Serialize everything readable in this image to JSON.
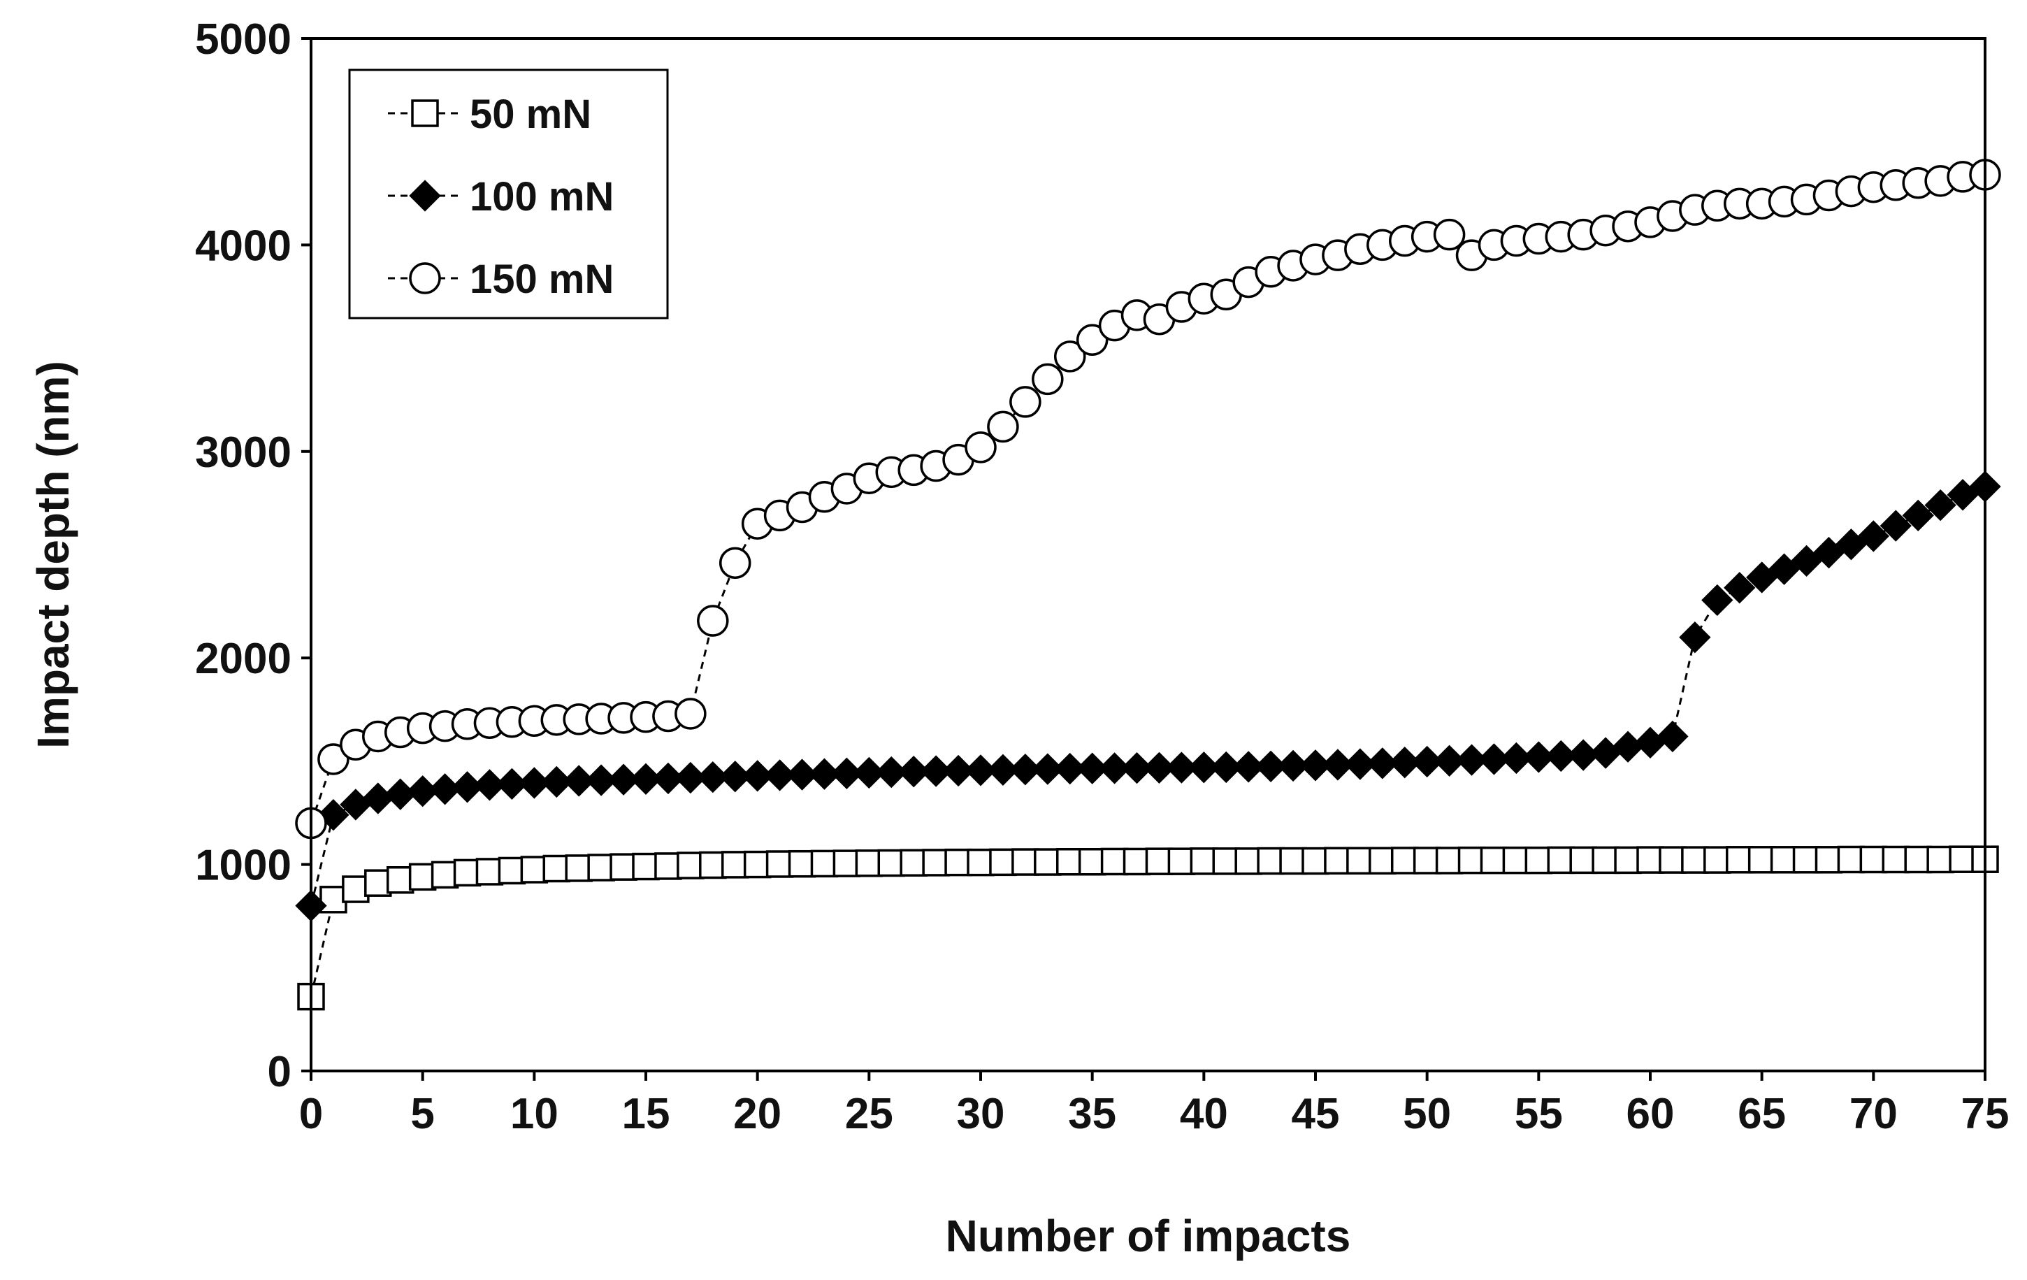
{
  "chart_data": {
    "type": "scatter",
    "title": "",
    "xlabel": "Number of impacts",
    "ylabel": "Impact depth (nm)",
    "xlim": [
      0,
      75
    ],
    "ylim": [
      0,
      5000
    ],
    "xticks": [
      0,
      5,
      10,
      15,
      20,
      25,
      30,
      35,
      40,
      45,
      50,
      55,
      60,
      65,
      70,
      75
    ],
    "yticks": [
      0,
      1000,
      2000,
      3000,
      4000,
      5000
    ],
    "grid": false,
    "legend_position": "top-left",
    "series": [
      {
        "name": "50 mN",
        "marker": "square-open",
        "line": "dashed",
        "x": [
          0,
          1,
          2,
          3,
          4,
          5,
          6,
          7,
          8,
          9,
          10,
          11,
          12,
          13,
          14,
          15,
          16,
          17,
          18,
          19,
          20,
          21,
          22,
          23,
          24,
          25,
          26,
          27,
          28,
          29,
          30,
          31,
          32,
          33,
          34,
          35,
          36,
          37,
          38,
          39,
          40,
          41,
          42,
          43,
          44,
          45,
          46,
          47,
          48,
          49,
          50,
          51,
          52,
          53,
          54,
          55,
          56,
          57,
          58,
          59,
          60,
          61,
          62,
          63,
          64,
          65,
          66,
          67,
          68,
          69,
          70,
          71,
          72,
          73,
          74,
          75
        ],
        "y": [
          360,
          830,
          880,
          910,
          925,
          940,
          950,
          960,
          965,
          970,
          975,
          980,
          982,
          985,
          988,
          990,
          992,
          995,
          997,
          999,
          1000,
          1002,
          1003,
          1004,
          1005,
          1006,
          1007,
          1008,
          1009,
          1010,
          1010,
          1011,
          1012,
          1012,
          1013,
          1013,
          1014,
          1014,
          1015,
          1015,
          1016,
          1016,
          1016,
          1017,
          1017,
          1017,
          1018,
          1018,
          1018,
          1019,
          1019,
          1019,
          1020,
          1020,
          1020,
          1020,
          1021,
          1021,
          1021,
          1021,
          1022,
          1022,
          1022,
          1022,
          1023,
          1023,
          1023,
          1023,
          1023,
          1024,
          1024,
          1024,
          1024,
          1024,
          1025,
          1025
        ]
      },
      {
        "name": "100 mN",
        "marker": "diamond-filled",
        "line": "dashed",
        "x": [
          0,
          1,
          2,
          3,
          4,
          5,
          6,
          7,
          8,
          9,
          10,
          11,
          12,
          13,
          14,
          15,
          16,
          17,
          18,
          19,
          20,
          21,
          22,
          23,
          24,
          25,
          26,
          27,
          28,
          29,
          30,
          31,
          32,
          33,
          34,
          35,
          36,
          37,
          38,
          39,
          40,
          41,
          42,
          43,
          44,
          45,
          46,
          47,
          48,
          49,
          50,
          51,
          52,
          53,
          54,
          55,
          56,
          57,
          58,
          59,
          60,
          61,
          62,
          63,
          64,
          65,
          66,
          67,
          68,
          69,
          70,
          71,
          72,
          73,
          74,
          75
        ],
        "y": [
          800,
          1240,
          1290,
          1320,
          1340,
          1355,
          1365,
          1375,
          1385,
          1390,
          1395,
          1400,
          1405,
          1408,
          1411,
          1414,
          1417,
          1420,
          1423,
          1426,
          1429,
          1432,
          1435,
          1438,
          1441,
          1444,
          1447,
          1450,
          1452,
          1454,
          1456,
          1458,
          1460,
          1462,
          1464,
          1465,
          1466,
          1467,
          1468,
          1469,
          1470,
          1471,
          1473,
          1475,
          1478,
          1480,
          1483,
          1486,
          1490,
          1494,
          1498,
          1502,
          1506,
          1510,
          1515,
          1520,
          1525,
          1530,
          1540,
          1570,
          1590,
          1620,
          2100,
          2280,
          2340,
          2390,
          2430,
          2470,
          2510,
          2550,
          2590,
          2640,
          2690,
          2740,
          2790,
          2830
        ]
      },
      {
        "name": "150 mN",
        "marker": "circle-open",
        "line": "dashed",
        "x": [
          0,
          1,
          2,
          3,
          4,
          5,
          6,
          7,
          8,
          9,
          10,
          11,
          12,
          13,
          14,
          15,
          16,
          17,
          18,
          19,
          20,
          21,
          22,
          23,
          24,
          25,
          26,
          27,
          28,
          29,
          30,
          31,
          32,
          33,
          34,
          35,
          36,
          37,
          38,
          39,
          40,
          41,
          42,
          43,
          44,
          45,
          46,
          47,
          48,
          49,
          50,
          51,
          52,
          53,
          54,
          55,
          56,
          57,
          58,
          59,
          60,
          61,
          62,
          63,
          64,
          65,
          66,
          67,
          68,
          69,
          70,
          71,
          72,
          73,
          74,
          75
        ],
        "y": [
          1200,
          1510,
          1580,
          1620,
          1640,
          1660,
          1670,
          1680,
          1685,
          1690,
          1695,
          1700,
          1703,
          1706,
          1710,
          1714,
          1718,
          1730,
          2180,
          2460,
          2650,
          2690,
          2730,
          2780,
          2820,
          2870,
          2900,
          2910,
          2930,
          2960,
          3020,
          3120,
          3240,
          3350,
          3460,
          3540,
          3610,
          3660,
          3640,
          3700,
          3740,
          3760,
          3820,
          3870,
          3900,
          3930,
          3950,
          3980,
          4000,
          4020,
          4040,
          4050,
          3950,
          4000,
          4020,
          4030,
          4040,
          4050,
          4070,
          4090,
          4110,
          4140,
          4170,
          4190,
          4200,
          4200,
          4210,
          4220,
          4240,
          4260,
          4280,
          4290,
          4300,
          4310,
          4330,
          4340
        ]
      }
    ]
  }
}
